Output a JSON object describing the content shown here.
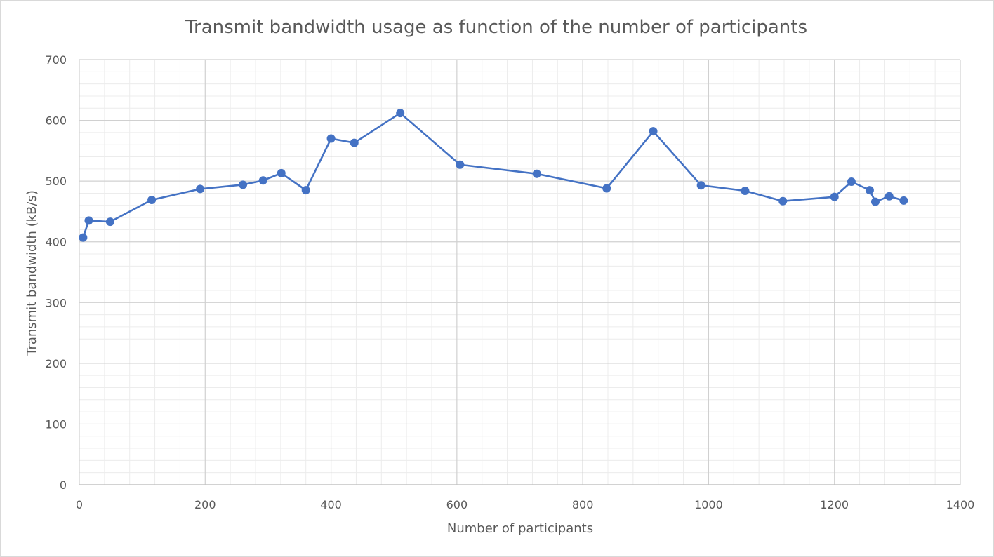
{
  "chart_data": {
    "type": "scatter",
    "title": "Transmit bandwidth usage as function of the number of participants",
    "xlabel": "Number of participants",
    "ylabel": "Transmit bandwidth (kB/s)",
    "xlim": [
      0,
      1400
    ],
    "ylim": [
      0,
      700
    ],
    "x_ticks": [
      "0",
      "200",
      "400",
      "600",
      "800",
      "1000",
      "1200",
      "1400"
    ],
    "y_ticks": [
      "0",
      "100",
      "200",
      "300",
      "400",
      "500",
      "600",
      "700"
    ],
    "grid": true,
    "legend": "none",
    "series_color": "#4472C4",
    "series": [
      {
        "x": [
          6,
          15,
          49,
          115,
          192,
          260,
          292,
          321,
          360,
          400,
          437,
          510,
          605,
          727,
          838,
          912,
          988,
          1058,
          1118,
          1200,
          1227,
          1256,
          1265,
          1287,
          1310
        ],
        "y": [
          407,
          435,
          433,
          469,
          487,
          494,
          501,
          513,
          485,
          570,
          563,
          612,
          527,
          512,
          488,
          582,
          493,
          484,
          467,
          474,
          499,
          485,
          466,
          475,
          468
        ]
      }
    ]
  }
}
